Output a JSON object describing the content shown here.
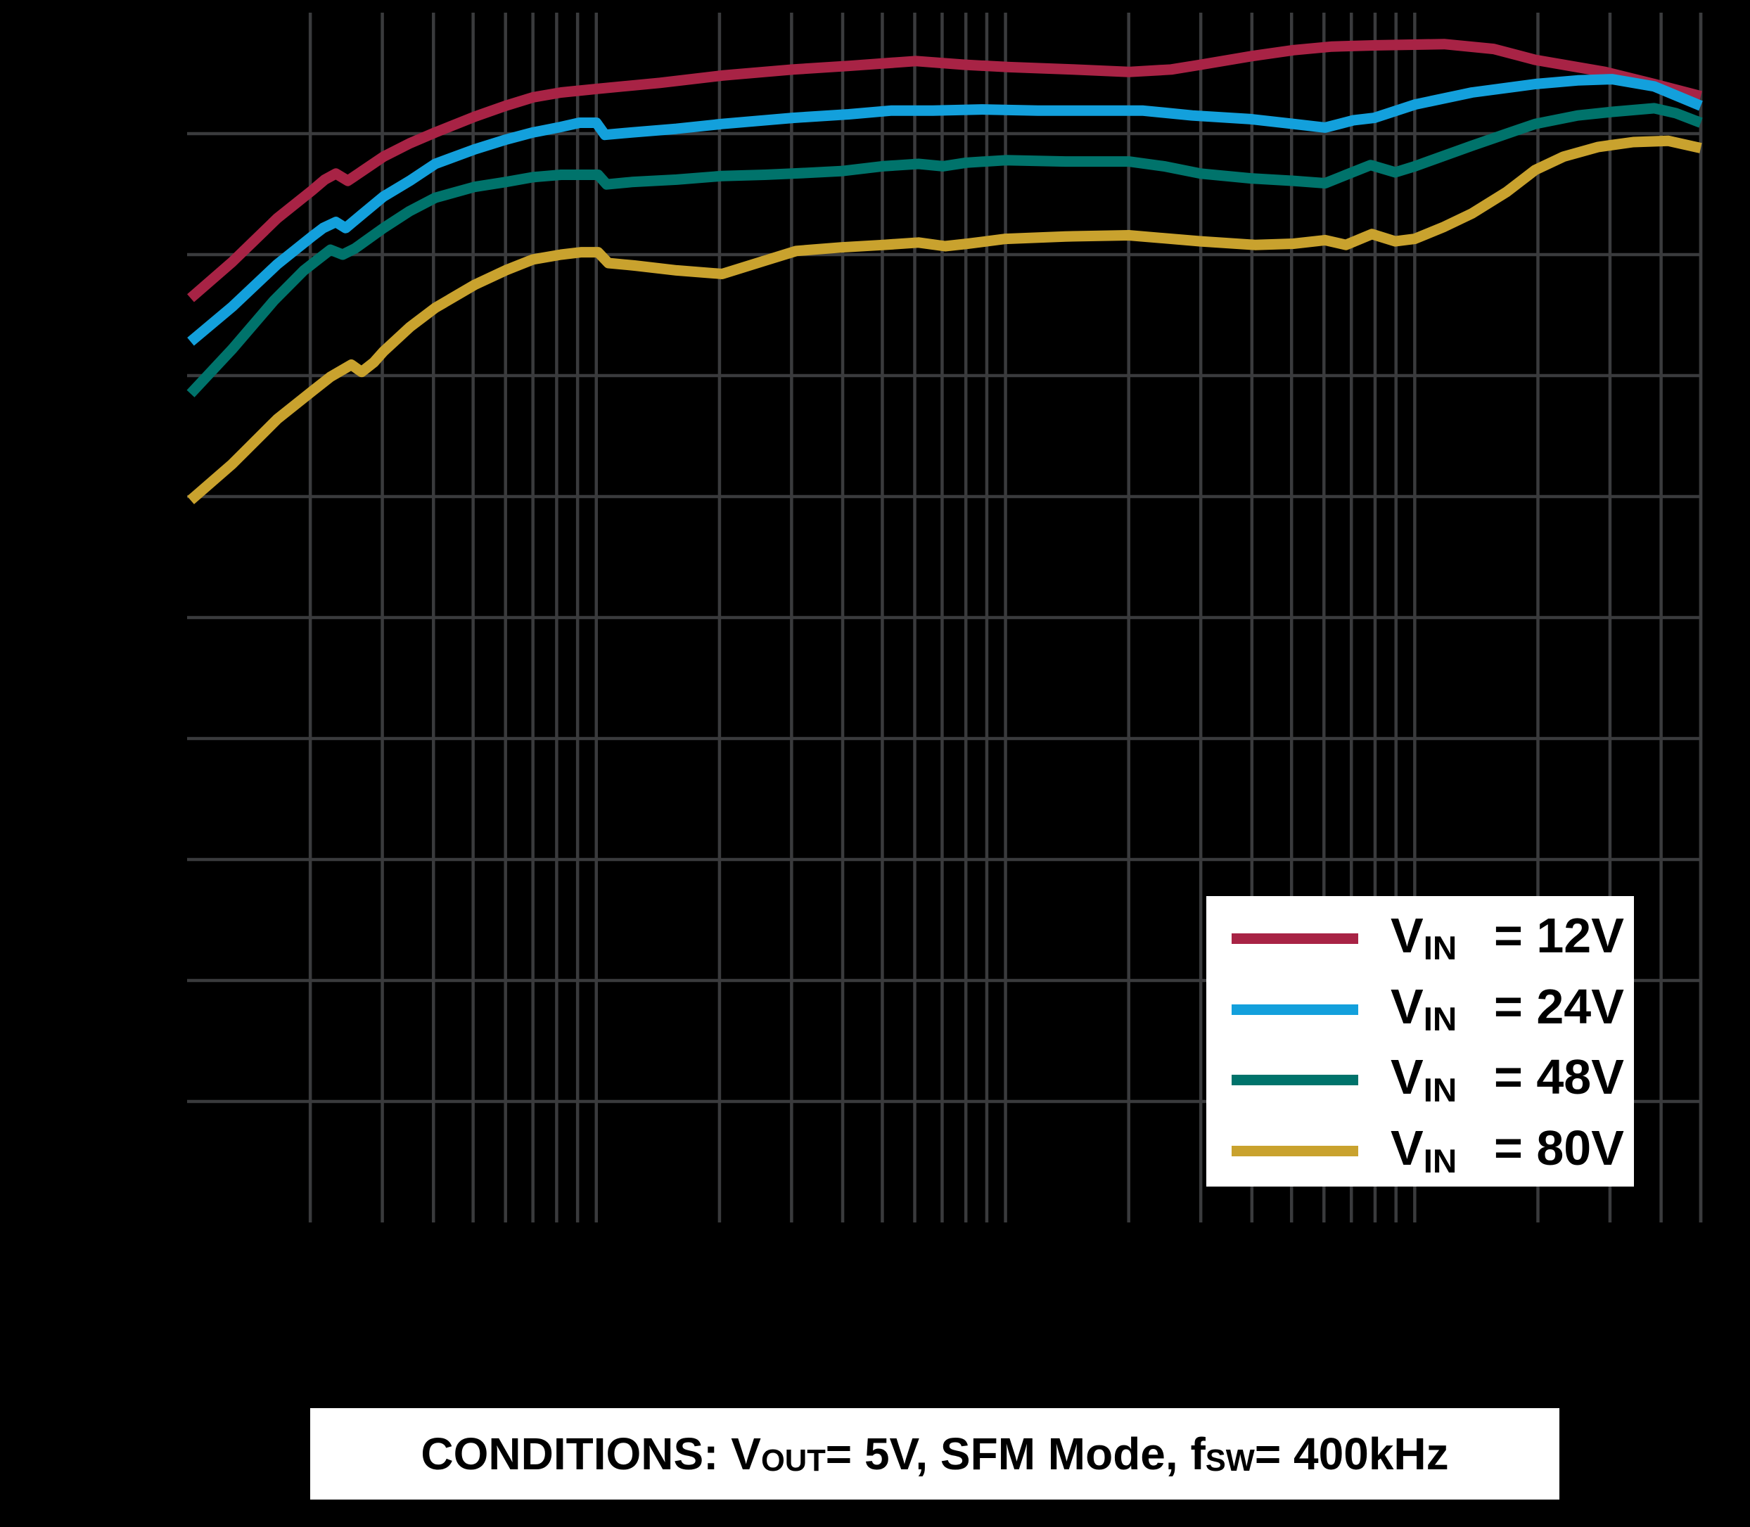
{
  "colors": {
    "background": "#000000",
    "grid": "#3A3B3D",
    "panel_bg": "#FFFFFF",
    "text": "#000000"
  },
  "conditions": {
    "prefix": "CONDITIONS: V",
    "sub1": "OUT",
    "mid": " = 5V, SFM Mode, f",
    "sub2": "SW",
    "suffix": " = 400kHz"
  },
  "chart_data": {
    "type": "line",
    "title": "",
    "xlabel": "",
    "ylabel": "",
    "grid": true,
    "legend_position": "lower-right",
    "x_axis": {
      "scale": "log",
      "unit": "A",
      "min": 0.001,
      "max": 5,
      "minor_gridlines_per_decade": [
        2,
        3,
        4,
        5,
        6,
        7,
        8,
        9
      ]
    },
    "y_axis": {
      "min": 0,
      "max": 100,
      "grid_step": 10,
      "unit": "%"
    },
    "series": [
      {
        "var": "V",
        "sub": "IN",
        "value": "= 12V",
        "color": "#A82345",
        "points_mA_pct": [
          [
            1.02,
            76.4
          ],
          [
            1.29,
            79.4
          ],
          [
            1.66,
            83.0
          ],
          [
            2.02,
            85.3
          ],
          [
            2.17,
            86.2
          ],
          [
            2.31,
            86.7
          ],
          [
            2.47,
            86.1
          ],
          [
            3.02,
            88.1
          ],
          [
            3.5,
            89.2
          ],
          [
            4.04,
            90.1
          ],
          [
            5.04,
            91.4
          ],
          [
            6,
            92.3
          ],
          [
            7,
            93.0
          ],
          [
            8.2,
            93.4
          ],
          [
            10,
            93.7
          ],
          [
            14.3,
            94.2
          ],
          [
            20.3,
            94.8
          ],
          [
            30.2,
            95.3
          ],
          [
            41.4,
            95.6
          ],
          [
            60.4,
            96.0
          ],
          [
            79.2,
            95.7
          ],
          [
            102,
            95.5
          ],
          [
            146,
            95.3
          ],
          [
            200,
            95.1
          ],
          [
            254,
            95.3
          ],
          [
            300,
            95.7
          ],
          [
            398,
            96.4
          ],
          [
            505,
            96.9
          ],
          [
            628,
            97.2
          ],
          [
            811,
            97.3
          ],
          [
            1180,
            97.4
          ],
          [
            1560,
            97.0
          ],
          [
            1970,
            96.1
          ],
          [
            2920,
            95.1
          ],
          [
            3850,
            94.1
          ],
          [
            5000,
            93.1
          ]
        ]
      },
      {
        "var": "V",
        "sub": "IN",
        "value": "= 24V",
        "color": "#13A0DC",
        "points_mA_pct": [
          [
            1.02,
            72.8
          ],
          [
            1.29,
            75.7
          ],
          [
            1.66,
            79.2
          ],
          [
            2.02,
            81.5
          ],
          [
            2.15,
            82.2
          ],
          [
            2.31,
            82.7
          ],
          [
            2.44,
            82.2
          ],
          [
            2.67,
            83.3
          ],
          [
            3.02,
            84.8
          ],
          [
            3.5,
            86.1
          ],
          [
            4.04,
            87.5
          ],
          [
            5.04,
            88.7
          ],
          [
            6,
            89.5
          ],
          [
            7,
            90.1
          ],
          [
            8.05,
            90.5
          ],
          [
            9.1,
            90.9
          ],
          [
            10,
            90.9
          ],
          [
            10.5,
            89.9
          ],
          [
            12.2,
            90.1
          ],
          [
            15.7,
            90.4
          ],
          [
            20.3,
            90.8
          ],
          [
            30.2,
            91.3
          ],
          [
            41.4,
            91.6
          ],
          [
            52.4,
            91.9
          ],
          [
            66.4,
            91.9
          ],
          [
            87.5,
            92.0
          ],
          [
            120,
            91.9
          ],
          [
            164,
            91.9
          ],
          [
            217,
            91.9
          ],
          [
            286,
            91.5
          ],
          [
            398,
            91.2
          ],
          [
            505,
            90.8
          ],
          [
            604,
            90.5
          ],
          [
            707,
            91.1
          ],
          [
            796,
            91.3
          ],
          [
            1000,
            92.4
          ],
          [
            1380,
            93.4
          ],
          [
            1970,
            94.1
          ],
          [
            2500,
            94.4
          ],
          [
            3040,
            94.5
          ],
          [
            3850,
            93.9
          ],
          [
            5000,
            92.3
          ]
        ]
      },
      {
        "var": "V",
        "sub": "IN",
        "value": "= 48V",
        "color": "#00736B",
        "points_mA_pct": [
          [
            1.02,
            68.5
          ],
          [
            1.29,
            72.2
          ],
          [
            1.63,
            76.2
          ],
          [
            1.93,
            78.7
          ],
          [
            2.07,
            79.5
          ],
          [
            2.24,
            80.4
          ],
          [
            2.4,
            80.0
          ],
          [
            2.57,
            80.5
          ],
          [
            3.02,
            82.2
          ],
          [
            3.5,
            83.6
          ],
          [
            4.04,
            84.7
          ],
          [
            5.04,
            85.6
          ],
          [
            6,
            86.0
          ],
          [
            7,
            86.4
          ],
          [
            8.2,
            86.6
          ],
          [
            9.2,
            86.6
          ],
          [
            10.1,
            86.6
          ],
          [
            10.6,
            85.8
          ],
          [
            12.2,
            86.0
          ],
          [
            15.7,
            86.2
          ],
          [
            20.3,
            86.5
          ],
          [
            25.8,
            86.6
          ],
          [
            30.2,
            86.7
          ],
          [
            39.7,
            86.9
          ],
          [
            50,
            87.3
          ],
          [
            61.3,
            87.5
          ],
          [
            70.4,
            87.3
          ],
          [
            80.2,
            87.6
          ],
          [
            100,
            87.8
          ],
          [
            140,
            87.7
          ],
          [
            200,
            87.7
          ],
          [
            244,
            87.3
          ],
          [
            300,
            86.7
          ],
          [
            398,
            86.3
          ],
          [
            505,
            86.1
          ],
          [
            604,
            85.9
          ],
          [
            680,
            86.6
          ],
          [
            780,
            87.4
          ],
          [
            896,
            86.8
          ],
          [
            1000,
            87.3
          ],
          [
            1380,
            89.0
          ],
          [
            1680,
            90.0
          ],
          [
            1970,
            90.8
          ],
          [
            2500,
            91.5
          ],
          [
            3040,
            91.8
          ],
          [
            3850,
            92.1
          ],
          [
            4340,
            91.7
          ],
          [
            5000,
            90.9
          ]
        ]
      },
      {
        "var": "V",
        "sub": "IN",
        "value": "= 80V",
        "color": "#C9A22E",
        "points_mA_pct": [
          [
            1.02,
            59.7
          ],
          [
            1.29,
            62.7
          ],
          [
            1.66,
            66.4
          ],
          [
            2.02,
            68.7
          ],
          [
            2.24,
            69.9
          ],
          [
            2.52,
            70.9
          ],
          [
            2.67,
            70.3
          ],
          [
            2.86,
            71.1
          ],
          [
            3.02,
            72.0
          ],
          [
            3.5,
            74.0
          ],
          [
            4.04,
            75.6
          ],
          [
            5.04,
            77.5
          ],
          [
            6,
            78.7
          ],
          [
            7,
            79.6
          ],
          [
            8.2,
            80.0
          ],
          [
            9.2,
            80.2
          ],
          [
            10.1,
            80.2
          ],
          [
            10.7,
            79.3
          ],
          [
            12.4,
            79.1
          ],
          [
            15.7,
            78.7
          ],
          [
            20.3,
            78.4
          ],
          [
            25.8,
            79.5
          ],
          [
            30.8,
            80.3
          ],
          [
            39.7,
            80.6
          ],
          [
            50.4,
            80.8
          ],
          [
            61.3,
            81.0
          ],
          [
            71.2,
            80.7
          ],
          [
            80.8,
            80.9
          ],
          [
            100,
            81.3
          ],
          [
            140,
            81.5
          ],
          [
            200,
            81.6
          ],
          [
            300,
            81.1
          ],
          [
            407,
            80.8
          ],
          [
            505,
            80.9
          ],
          [
            604,
            81.2
          ],
          [
            679,
            80.8
          ],
          [
            786,
            81.7
          ],
          [
            896,
            81.1
          ],
          [
            1000,
            81.3
          ],
          [
            1180,
            82.3
          ],
          [
            1380,
            83.4
          ],
          [
            1680,
            85.2
          ],
          [
            1970,
            87.0
          ],
          [
            2310,
            88.1
          ],
          [
            2810,
            88.9
          ],
          [
            3420,
            89.3
          ],
          [
            4170,
            89.4
          ],
          [
            5000,
            88.8
          ]
        ]
      }
    ]
  }
}
